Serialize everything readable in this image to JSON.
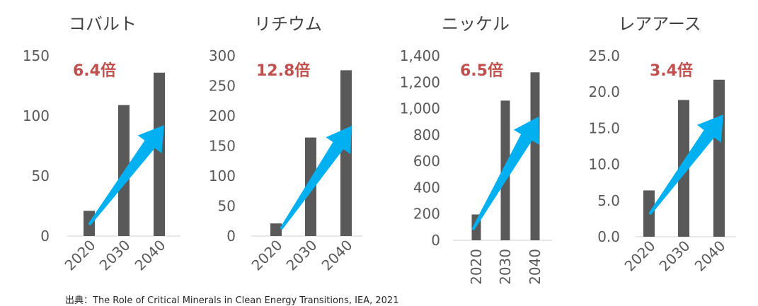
{
  "chart_data": [
    {
      "type": "bar",
      "title": "コバルト",
      "categories": [
        "2020",
        "2030",
        "2040"
      ],
      "values": [
        21,
        109,
        136
      ],
      "ylim": [
        0,
        150
      ],
      "yticks": [
        "0",
        "50",
        "100",
        "150"
      ],
      "multiplier": "6.4倍",
      "xlabel": "",
      "ylabel": ""
    },
    {
      "type": "bar",
      "title": "リチウム",
      "categories": [
        "2020",
        "2030",
        "2040"
      ],
      "values": [
        21,
        164,
        276
      ],
      "ylim": [
        0,
        300
      ],
      "yticks": [
        "0",
        "50",
        "100",
        "150",
        "200",
        "250",
        "300"
      ],
      "multiplier": "12.8倍",
      "xlabel": "",
      "ylabel": ""
    },
    {
      "type": "bar",
      "title": "ニッケル",
      "categories": [
        "2020",
        "2030",
        "2040"
      ],
      "values": [
        196,
        1060,
        1275
      ],
      "ylim": [
        0,
        1400
      ],
      "yticks": [
        "0",
        "200",
        "400",
        "600",
        "800",
        "1,000",
        "1,200",
        "1,400"
      ],
      "multiplier": "6.5倍",
      "xlabel": "",
      "ylabel": ""
    },
    {
      "type": "bar",
      "title": "レアアース",
      "categories": [
        "2020",
        "2030",
        "2040"
      ],
      "values": [
        6.4,
        18.9,
        21.7
      ],
      "ylim": [
        0,
        25
      ],
      "yticks": [
        "0.0",
        "5.0",
        "10.0",
        "15.0",
        "20.0",
        "25.0"
      ],
      "multiplier": "3.4倍",
      "xlabel": "",
      "ylabel": ""
    }
  ],
  "colors": {
    "bar": "#595959",
    "arrow": "#00b0f0",
    "multiplier": "#c0504d"
  },
  "source": "出典：The Role of Critical Minerals in Clean Energy Transitions, IEA, 2021"
}
